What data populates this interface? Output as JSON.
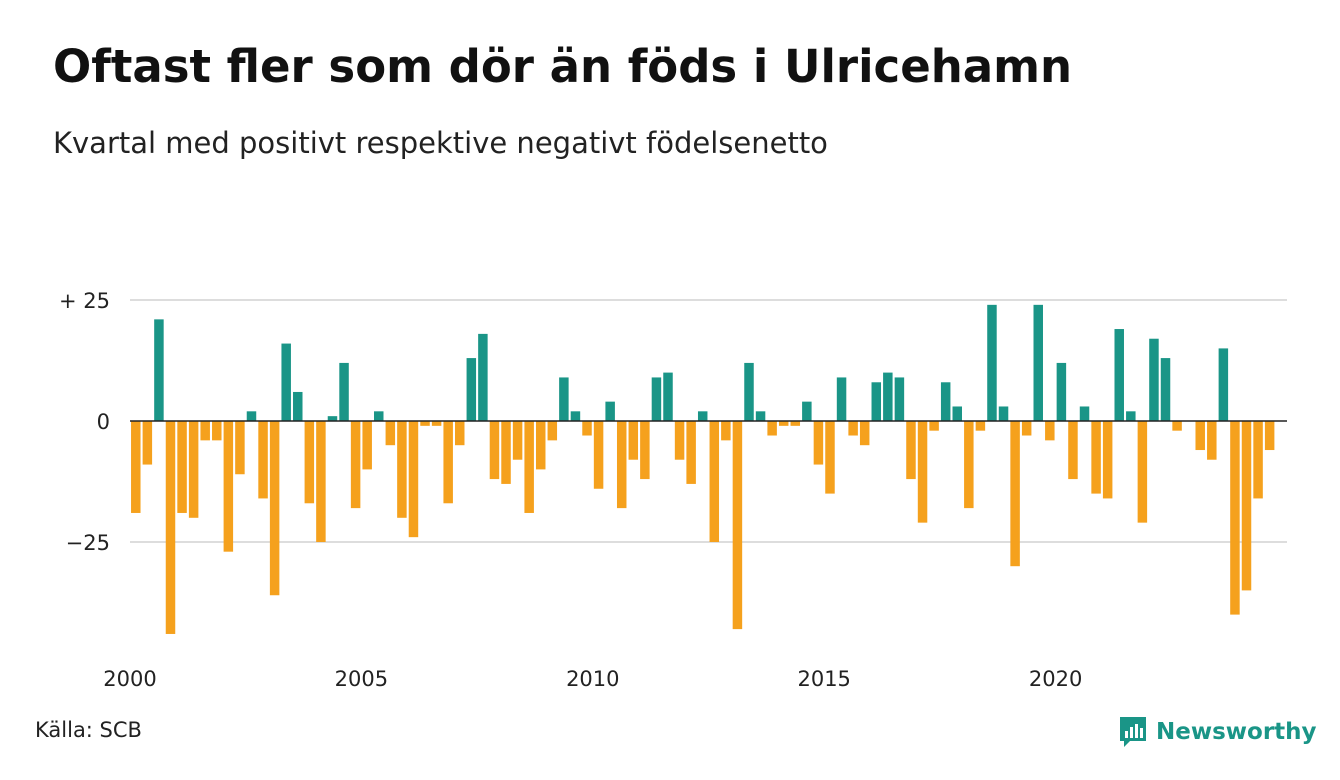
{
  "header": {
    "title": "Oftast fler som dör än föds i Ulricehamn",
    "subtitle": "Kvartal med positivt respektive negativt födelsenetto"
  },
  "footer": {
    "source": "Källa: SCB",
    "brand": "Newsworthy"
  },
  "colors": {
    "positive": "#1a9587",
    "negative": "#f5a11d",
    "grid": "#dddddd",
    "zero_line": "#222222",
    "brand": "#1a9587"
  },
  "chart_data": {
    "type": "bar",
    "title": "Oftast fler som dör än föds i Ulricehamn",
    "subtitle": "Kvartal med positivt respektive negativt födelsenetto",
    "x_start_year": 2000,
    "x_end_year": 2025,
    "ylim": [
      -47,
      25
    ],
    "yticks": [
      25,
      0,
      -25
    ],
    "ytick_labels": [
      "+ 25",
      "0",
      "−25"
    ],
    "xticks": [
      2000,
      2005,
      2010,
      2015,
      2020
    ],
    "xtick_labels": [
      "2000",
      "2005",
      "2010",
      "2015",
      "2020"
    ],
    "grid": true,
    "categories": [
      "2000K1",
      "2000K2",
      "2000K3",
      "2000K4",
      "2001K1",
      "2001K2",
      "2001K3",
      "2001K4",
      "2002K1",
      "2002K2",
      "2002K3",
      "2002K4",
      "2003K1",
      "2003K2",
      "2003K3",
      "2003K4",
      "2004K1",
      "2004K2",
      "2004K3",
      "2004K4",
      "2005K1",
      "2005K2",
      "2005K3",
      "2005K4",
      "2006K1",
      "2006K2",
      "2006K3",
      "2006K4",
      "2007K1",
      "2007K2",
      "2007K3",
      "2007K4",
      "2008K1",
      "2008K2",
      "2008K3",
      "2008K4",
      "2009K1",
      "2009K2",
      "2009K3",
      "2009K4",
      "2010K1",
      "2010K2",
      "2010K3",
      "2010K4",
      "2011K1",
      "2011K2",
      "2011K3",
      "2011K4",
      "2012K1",
      "2012K2",
      "2012K3",
      "2012K4",
      "2013K1",
      "2013K2",
      "2013K3",
      "2013K4",
      "2014K1",
      "2014K2",
      "2014K3",
      "2014K4",
      "2015K1",
      "2015K2",
      "2015K3",
      "2015K4",
      "2016K1",
      "2016K2",
      "2016K3",
      "2016K4",
      "2017K1",
      "2017K2",
      "2017K3",
      "2017K4",
      "2018K1",
      "2018K2",
      "2018K3",
      "2018K4",
      "2019K1",
      "2019K2",
      "2019K3",
      "2019K4",
      "2020K1",
      "2020K2",
      "2020K3",
      "2020K4",
      "2021K1",
      "2021K2",
      "2021K3",
      "2021K4",
      "2022K1",
      "2022K2",
      "2022K3",
      "2022K4",
      "2023K1",
      "2023K2",
      "2023K3",
      "2023K4",
      "2024K1",
      "2024K2",
      "2024K3",
      "2024K4"
    ],
    "values": [
      -19,
      -9,
      21,
      -44,
      -19,
      -20,
      -4,
      -4,
      -27,
      -11,
      2,
      -16,
      -36,
      16,
      6,
      -17,
      -25,
      1,
      12,
      -18,
      -10,
      2,
      -5,
      -20,
      -24,
      -1,
      -1,
      -17,
      -5,
      13,
      18,
      -12,
      -13,
      -8,
      -19,
      -10,
      -4,
      9,
      2,
      -3,
      -14,
      4,
      -18,
      -8,
      -12,
      9,
      10,
      -8,
      -13,
      2,
      -25,
      -4,
      -43,
      12,
      2,
      -3,
      -1,
      -1,
      4,
      -9,
      -15,
      9,
      -3,
      -5,
      8,
      10,
      9,
      -12,
      -21,
      -2,
      8,
      3,
      -18,
      -2,
      24,
      3,
      -30,
      -3,
      24,
      -4,
      12,
      -12,
      3,
      -15,
      -16,
      19,
      2,
      -21,
      17,
      13,
      -2,
      0,
      -6,
      -8,
      15,
      -40,
      -35,
      -16,
      -6,
      0
    ]
  }
}
